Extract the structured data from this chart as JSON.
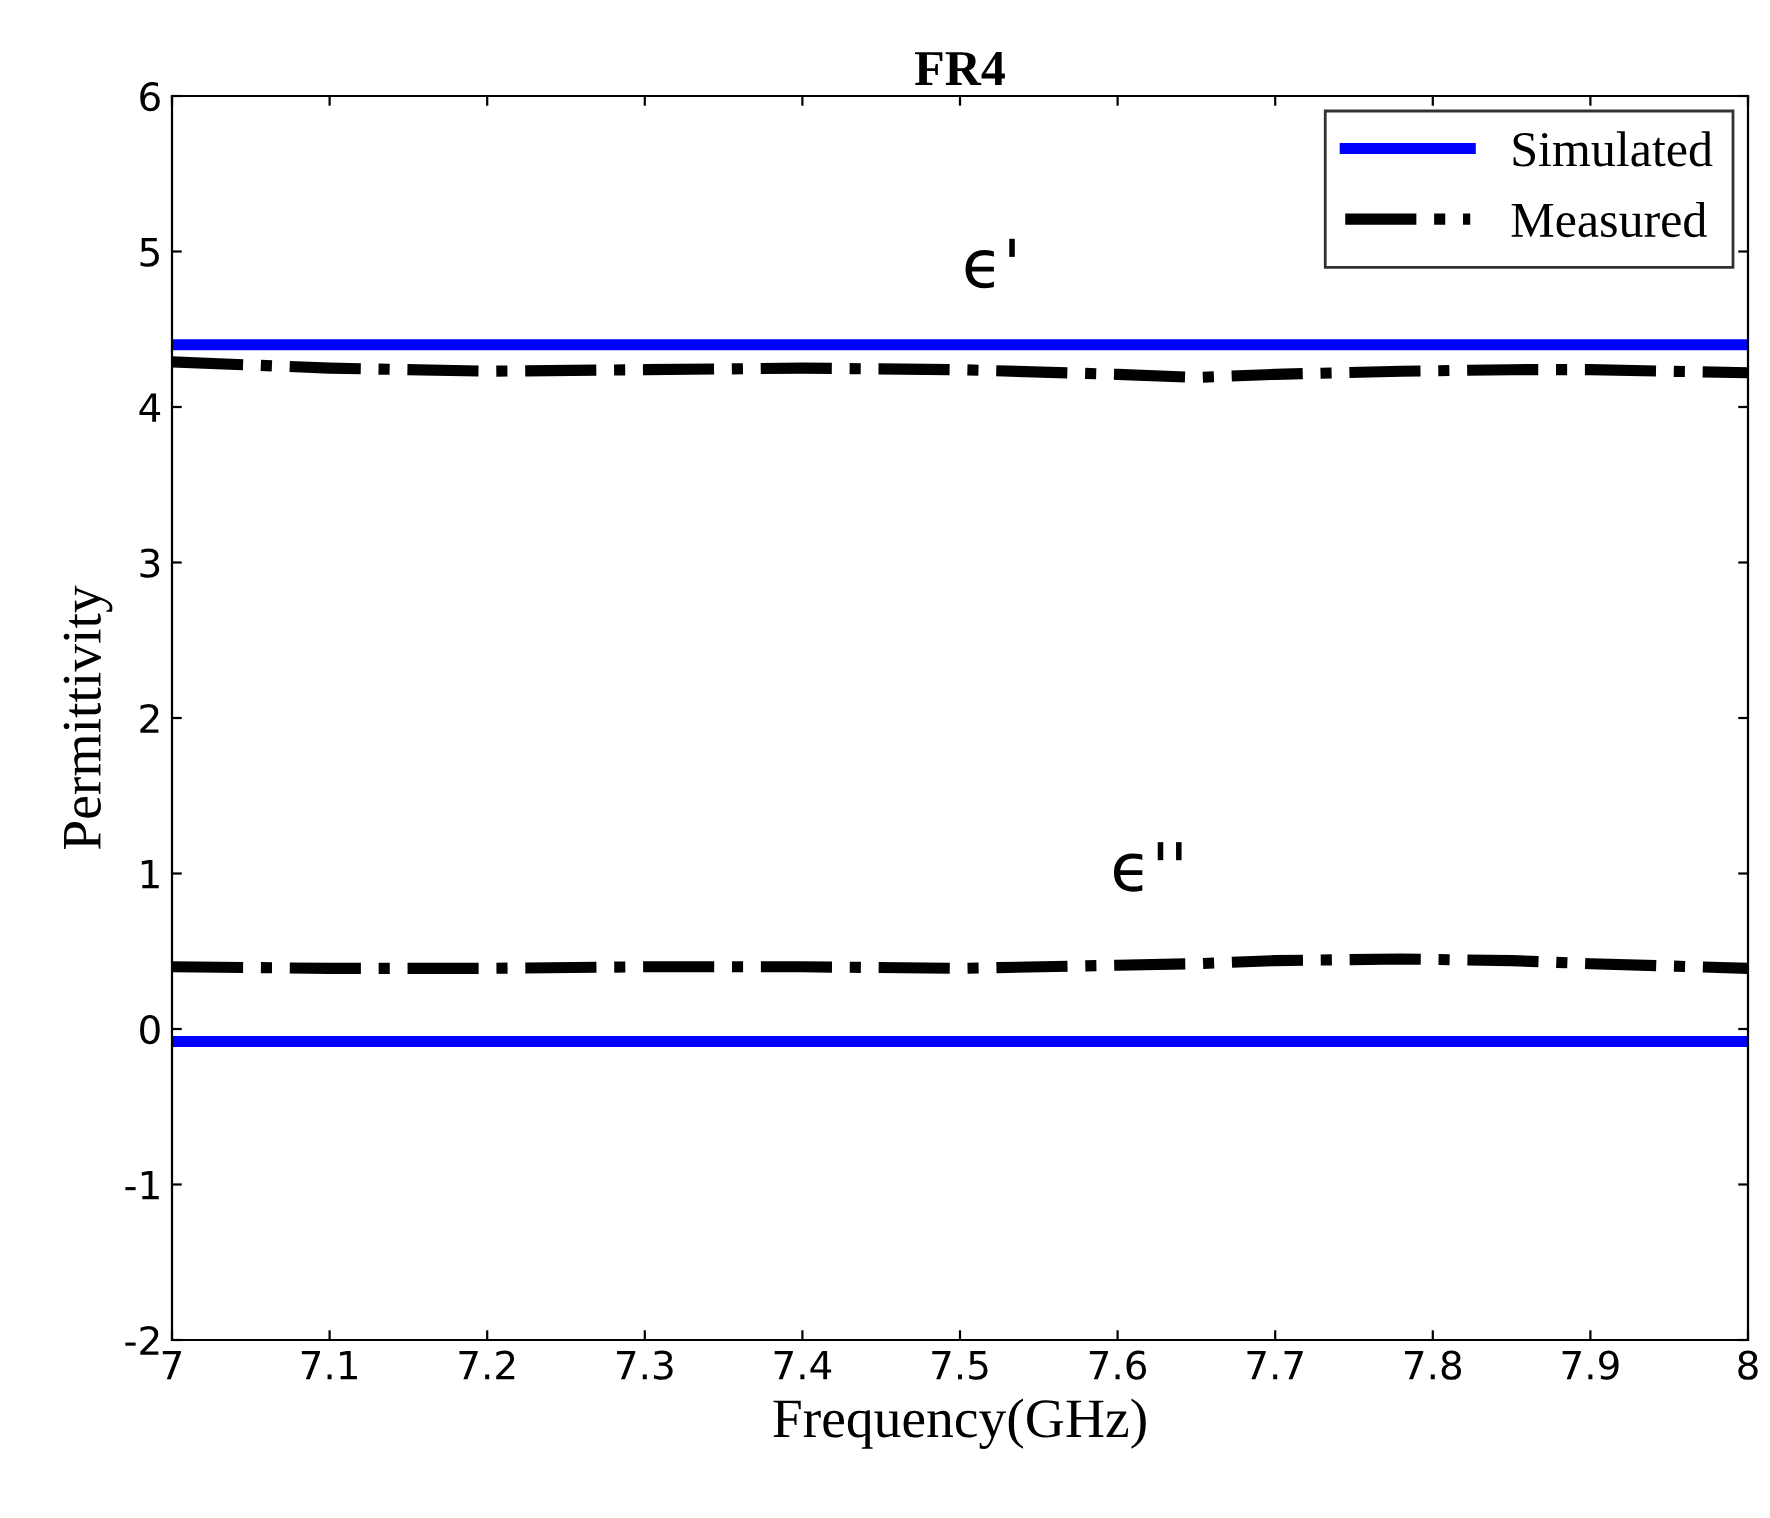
{
  "chart_data": {
    "type": "line",
    "title": "FR4",
    "xlabel": "Frequency(GHz)",
    "ylabel": "Permittivity",
    "x": [
      7,
      7.1,
      7.2,
      7.3,
      7.4,
      7.5,
      7.6,
      7.65,
      7.7,
      7.78,
      7.85,
      7.9,
      8
    ],
    "series": [
      {
        "name": "Simulated",
        "color": "#0000ff",
        "line_style": "solid",
        "values": [
          4.4,
          4.4,
          4.4,
          4.4,
          4.4,
          4.4,
          4.4,
          4.4,
          4.4,
          4.4,
          4.4,
          4.4,
          4.4
        ]
      },
      {
        "name": "Measured",
        "color": "#000000",
        "line_style": "dashdot",
        "values": [
          4.29,
          4.25,
          4.23,
          4.24,
          4.25,
          4.24,
          4.21,
          4.19,
          4.21,
          4.23,
          4.24,
          4.24,
          4.22
        ]
      },
      {
        "color": "#0000ff",
        "line_style": "solid",
        "values": [
          -0.08,
          -0.08,
          -0.08,
          -0.08,
          -0.08,
          -0.08,
          -0.08,
          -0.08,
          -0.08,
          -0.08,
          -0.08,
          -0.08,
          -0.08
        ]
      },
      {
        "color": "#000000",
        "line_style": "dashdot",
        "values": [
          0.4,
          0.39,
          0.39,
          0.4,
          0.4,
          0.39,
          0.41,
          0.42,
          0.44,
          0.45,
          0.44,
          0.42,
          0.39
        ]
      }
    ],
    "annotations": [
      "ϵ'",
      "ϵ''"
    ],
    "xlim": [
      7,
      8
    ],
    "xticks": [
      7,
      7.1,
      7.2,
      7.3,
      7.4,
      7.5,
      7.6,
      7.7,
      7.8,
      7.9,
      8
    ],
    "ylim": [
      -2,
      6
    ],
    "yticks": [
      -2,
      -1,
      0,
      1,
      2,
      3,
      4,
      5,
      6
    ],
    "grid": false,
    "legend": "top right",
    "marker": "none"
  }
}
